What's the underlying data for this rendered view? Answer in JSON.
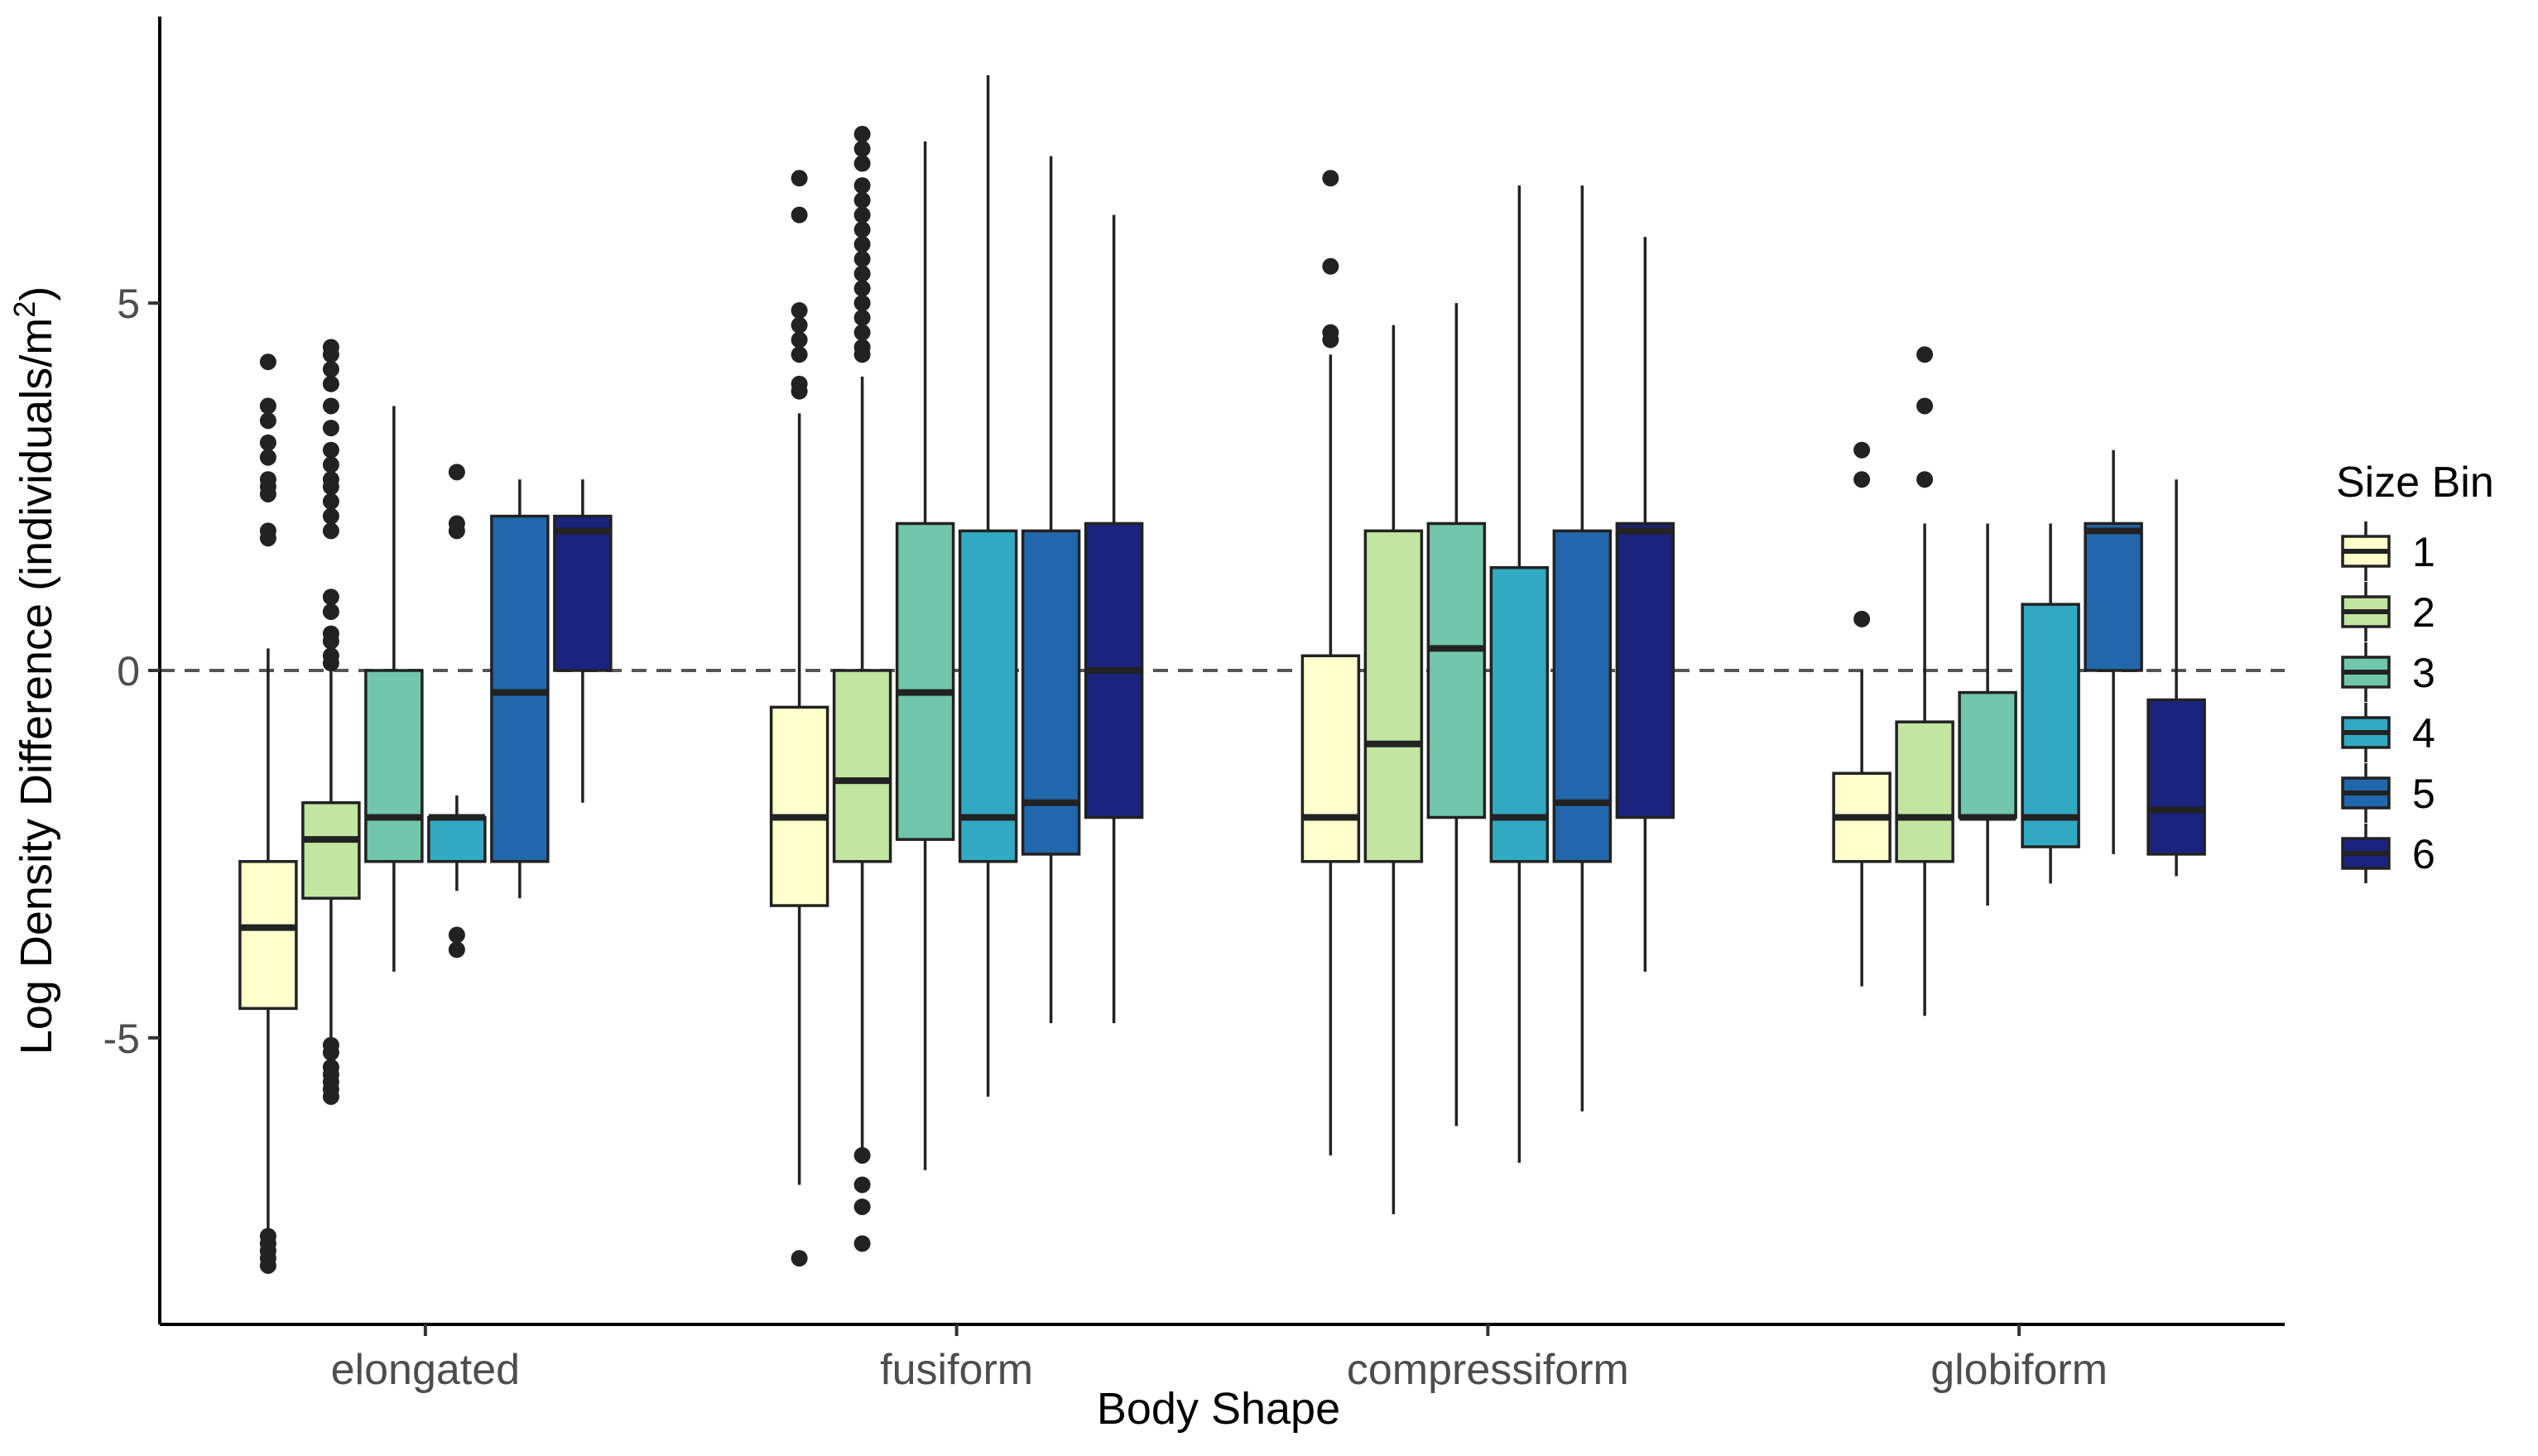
{
  "chart_data": {
    "type": "box",
    "xlabel": "Body Shape",
    "ylabel": "Log Density Difference (individuals/m",
    "ylabel_superscript": "2",
    "ylabel_close": ")",
    "ylim": [
      -8.9,
      8.9
    ],
    "yticks": [
      -5,
      0,
      5
    ],
    "ytick_labels": [
      "-5",
      "0",
      "5"
    ],
    "reference_line": 0,
    "grid": false,
    "legend_position": "right",
    "legend": {
      "title": "Size Bin",
      "entries": [
        {
          "label": "1",
          "color": "#FFFFCC"
        },
        {
          "label": "2",
          "color": "#C2E6A0"
        },
        {
          "label": "3",
          "color": "#71C6AB"
        },
        {
          "label": "4",
          "color": "#32A9C2"
        },
        {
          "label": "5",
          "color": "#2167AB"
        },
        {
          "label": "6",
          "color": "#1A237E"
        }
      ]
    },
    "categories": [
      "elongated",
      "fusiform",
      "compressiform",
      "globiform"
    ],
    "groups": [
      {
        "category": "elongated",
        "boxes": [
          {
            "bin": "1",
            "whisker_low": -7.6,
            "q1": -4.6,
            "median": -3.5,
            "q3": -2.6,
            "whisker_high": 0.3,
            "outliers": [
              4.2,
              3.6,
              3.4,
              3.1,
              2.9,
              2.6,
              2.5,
              2.4,
              1.9,
              1.8,
              -7.7,
              -7.8,
              -7.9,
              -8.0,
              -8.1
            ]
          },
          {
            "bin": "2",
            "whisker_low": -5.0,
            "q1": -3.1,
            "median": -2.3,
            "q3": -1.8,
            "whisker_high": 0.0,
            "outliers": [
              4.4,
              4.3,
              4.1,
              3.9,
              3.6,
              3.3,
              3.0,
              2.8,
              2.6,
              2.5,
              2.3,
              2.1,
              1.9,
              1.0,
              0.8,
              0.5,
              0.4,
              0.2,
              0.1,
              -5.1,
              -5.2,
              -5.4,
              -5.5,
              -5.6,
              -5.7,
              -5.8
            ]
          },
          {
            "bin": "3",
            "whisker_low": -4.1,
            "q1": -2.6,
            "median": -2.0,
            "q3": 0.0,
            "whisker_high": 3.6,
            "outliers": []
          },
          {
            "bin": "4",
            "whisker_low": -3.0,
            "q1": -2.6,
            "median": -2.0,
            "q3": -2.0,
            "whisker_high": -1.7,
            "outliers": [
              2.7,
              2.0,
              1.9,
              -3.6,
              -3.8
            ]
          },
          {
            "bin": "5",
            "whisker_low": -3.1,
            "q1": -2.6,
            "median": -0.3,
            "q3": 2.1,
            "whisker_high": 2.6,
            "outliers": []
          },
          {
            "bin": "6",
            "whisker_low": -1.8,
            "q1": 0.0,
            "median": 1.9,
            "q3": 2.1,
            "whisker_high": 2.6,
            "outliers": []
          }
        ]
      },
      {
        "category": "fusiform",
        "boxes": [
          {
            "bin": "1",
            "whisker_low": -7.0,
            "q1": -3.2,
            "median": -2.0,
            "q3": -0.5,
            "whisker_high": 3.5,
            "outliers": [
              6.7,
              6.2,
              4.9,
              4.7,
              4.5,
              4.3,
              3.9,
              3.8,
              -8.0
            ]
          },
          {
            "bin": "2",
            "whisker_low": -6.5,
            "q1": -2.6,
            "median": -1.5,
            "q3": 0.0,
            "whisker_high": 4.0,
            "outliers": [
              7.3,
              7.1,
              6.9,
              6.6,
              6.4,
              6.2,
              6.0,
              5.8,
              5.6,
              5.4,
              5.2,
              5.0,
              4.8,
              4.6,
              4.4,
              4.3,
              -6.6,
              -7.0,
              -7.3,
              -7.8
            ]
          },
          {
            "bin": "3",
            "whisker_low": -6.8,
            "q1": -2.3,
            "median": -0.3,
            "q3": 2.0,
            "whisker_high": 7.2,
            "outliers": []
          },
          {
            "bin": "4",
            "whisker_low": -5.8,
            "q1": -2.6,
            "median": -2.0,
            "q3": 1.9,
            "whisker_high": 8.1,
            "outliers": []
          },
          {
            "bin": "5",
            "whisker_low": -4.8,
            "q1": -2.5,
            "median": -1.8,
            "q3": 1.9,
            "whisker_high": 7.0,
            "outliers": []
          },
          {
            "bin": "6",
            "whisker_low": -4.8,
            "q1": -2.0,
            "median": 0.0,
            "q3": 2.0,
            "whisker_high": 6.2,
            "outliers": []
          }
        ]
      },
      {
        "category": "compressiform",
        "boxes": [
          {
            "bin": "1",
            "whisker_low": -6.6,
            "q1": -2.6,
            "median": -2.0,
            "q3": 0.2,
            "whisker_high": 4.3,
            "outliers": [
              6.7,
              5.5,
              4.6,
              4.5
            ]
          },
          {
            "bin": "2",
            "whisker_low": -7.4,
            "q1": -2.6,
            "median": -1.0,
            "q3": 1.9,
            "whisker_high": 4.7,
            "outliers": []
          },
          {
            "bin": "3",
            "whisker_low": -6.2,
            "q1": -2.0,
            "median": 0.3,
            "q3": 2.0,
            "whisker_high": 5.0,
            "outliers": []
          },
          {
            "bin": "4",
            "whisker_low": -6.7,
            "q1": -2.6,
            "median": -2.0,
            "q3": 1.4,
            "whisker_high": 6.6,
            "outliers": []
          },
          {
            "bin": "5",
            "whisker_low": -6.0,
            "q1": -2.6,
            "median": -1.8,
            "q3": 1.9,
            "whisker_high": 6.6,
            "outliers": []
          },
          {
            "bin": "6",
            "whisker_low": -4.1,
            "q1": -2.0,
            "median": 1.9,
            "q3": 2.0,
            "whisker_high": 5.9,
            "outliers": []
          }
        ]
      },
      {
        "category": "globiform",
        "boxes": [
          {
            "bin": "1",
            "whisker_low": -4.3,
            "q1": -2.6,
            "median": -2.0,
            "q3": -1.4,
            "whisker_high": 0.0,
            "outliers": [
              3.0,
              2.6,
              0.7
            ]
          },
          {
            "bin": "2",
            "whisker_low": -4.7,
            "q1": -2.6,
            "median": -2.0,
            "q3": -0.7,
            "whisker_high": 2.0,
            "outliers": [
              4.3,
              3.6,
              2.6
            ]
          },
          {
            "bin": "3",
            "whisker_low": -3.2,
            "q1": -2.0,
            "median": -2.0,
            "q3": -0.3,
            "whisker_high": 2.0,
            "outliers": []
          },
          {
            "bin": "4",
            "whisker_low": -2.9,
            "q1": -2.4,
            "median": -2.0,
            "q3": 0.9,
            "whisker_high": 2.0,
            "outliers": []
          },
          {
            "bin": "5",
            "whisker_low": -2.5,
            "q1": 0.0,
            "median": 1.9,
            "q3": 2.0,
            "whisker_high": 3.0,
            "outliers": []
          },
          {
            "bin": "6",
            "whisker_low": -2.8,
            "q1": -2.5,
            "median": -1.9,
            "q3": -0.4,
            "whisker_high": 2.6,
            "outliers": []
          }
        ]
      }
    ]
  }
}
